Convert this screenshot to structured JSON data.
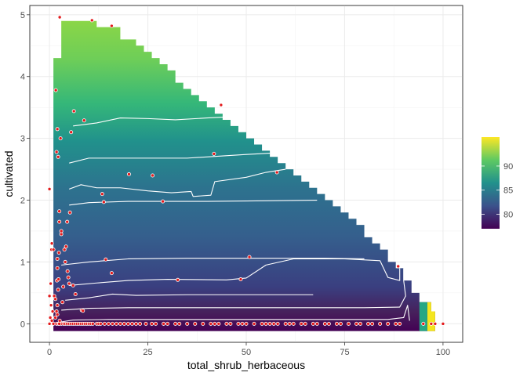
{
  "chart_data": {
    "type": "heatmap",
    "xlabel": "total_shrub_herbaceous",
    "ylabel": "cultivated",
    "xlim": [
      -5,
      105
    ],
    "ylim": [
      -0.3,
      5.15
    ],
    "x_ticks": [
      0,
      25,
      50,
      75,
      100
    ],
    "x_tick_labels": [
      "0",
      "25",
      "50",
      "75",
      "100"
    ],
    "y_ticks": [
      0,
      1,
      2,
      3,
      4,
      5
    ],
    "y_tick_labels": [
      "0",
      "1",
      "2",
      "3",
      "4",
      "5"
    ],
    "grid": true,
    "colorscale": "viridis",
    "fill_range": [
      77,
      96
    ],
    "legend": {
      "placement": "right",
      "ticks": [
        80,
        85,
        90
      ],
      "tick_labels": [
        "80",
        "85",
        "90"
      ]
    },
    "region_upper_boundary": [
      [
        1,
        4.3
      ],
      [
        3,
        4.3
      ],
      [
        3,
        4.9
      ],
      [
        12,
        4.9
      ],
      [
        12,
        4.8
      ],
      [
        18,
        4.8
      ],
      [
        18,
        4.6
      ],
      [
        22,
        4.6
      ],
      [
        22,
        4.5
      ],
      [
        24,
        4.5
      ],
      [
        24,
        4.4
      ],
      [
        26,
        4.4
      ],
      [
        26,
        4.3
      ],
      [
        28,
        4.3
      ],
      [
        28,
        4.2
      ],
      [
        30,
        4.2
      ],
      [
        30,
        4.1
      ],
      [
        32,
        4.1
      ],
      [
        32,
        3.9
      ],
      [
        34,
        3.9
      ],
      [
        34,
        3.8
      ],
      [
        36,
        3.8
      ],
      [
        36,
        3.7
      ],
      [
        38,
        3.7
      ],
      [
        38,
        3.6
      ],
      [
        40,
        3.6
      ],
      [
        40,
        3.5
      ],
      [
        42,
        3.5
      ],
      [
        42,
        3.4
      ],
      [
        44,
        3.4
      ],
      [
        44,
        3.3
      ],
      [
        46,
        3.3
      ],
      [
        46,
        3.2
      ],
      [
        48,
        3.2
      ],
      [
        48,
        3.1
      ],
      [
        50,
        3.1
      ],
      [
        50,
        3.0
      ],
      [
        52,
        3.0
      ],
      [
        52,
        2.9
      ],
      [
        54,
        2.9
      ],
      [
        54,
        2.8
      ],
      [
        56,
        2.8
      ],
      [
        56,
        2.7
      ],
      [
        58,
        2.7
      ],
      [
        58,
        2.6
      ],
      [
        60,
        2.6
      ],
      [
        60,
        2.5
      ],
      [
        62,
        2.5
      ],
      [
        62,
        2.4
      ],
      [
        64,
        2.4
      ],
      [
        64,
        2.3
      ],
      [
        66,
        2.3
      ],
      [
        66,
        2.2
      ],
      [
        68,
        2.2
      ],
      [
        68,
        2.1
      ],
      [
        70,
        2.1
      ],
      [
        70,
        2.0
      ],
      [
        72,
        2.0
      ],
      [
        72,
        1.9
      ],
      [
        74,
        1.9
      ],
      [
        74,
        1.8
      ],
      [
        76,
        1.8
      ],
      [
        76,
        1.7
      ],
      [
        78,
        1.7
      ],
      [
        78,
        1.6
      ],
      [
        80,
        1.6
      ],
      [
        80,
        1.4
      ],
      [
        82,
        1.4
      ],
      [
        82,
        1.3
      ],
      [
        84,
        1.3
      ],
      [
        84,
        1.2
      ],
      [
        86,
        1.2
      ],
      [
        86,
        1.0
      ],
      [
        88,
        1.0
      ],
      [
        88,
        0.9
      ],
      [
        90,
        0.9
      ],
      [
        90,
        0.7
      ],
      [
        92,
        0.7
      ],
      [
        92,
        0.5
      ],
      [
        94,
        0.5
      ],
      [
        94,
        0.35
      ],
      [
        97,
        0.35
      ],
      [
        97,
        0.2
      ],
      [
        98,
        0.2
      ],
      [
        98,
        0.0
      ]
    ],
    "contours": [
      [
        [
          2,
          0.02
        ],
        [
          6,
          0.06
        ],
        [
          15,
          0.07
        ],
        [
          30,
          0.07
        ],
        [
          45,
          0.07
        ],
        [
          60,
          0.07
        ],
        [
          75,
          0.07
        ],
        [
          86,
          0.07
        ],
        [
          90,
          0.1
        ],
        [
          91,
          0.3
        ],
        [
          91.5,
          0.05
        ]
      ],
      [
        [
          3,
          0.22
        ],
        [
          10,
          0.25
        ],
        [
          20,
          0.26
        ],
        [
          40,
          0.26
        ],
        [
          60,
          0.26
        ],
        [
          80,
          0.26
        ],
        [
          89,
          0.27
        ],
        [
          90.5,
          0.45
        ],
        [
          90,
          0.7
        ],
        [
          90,
          0.9
        ]
      ],
      [
        [
          4,
          0.38
        ],
        [
          10,
          0.42
        ],
        [
          16,
          0.48
        ],
        [
          22,
          0.46
        ],
        [
          35,
          0.47
        ],
        [
          50,
          0.47
        ],
        [
          67,
          0.47
        ]
      ],
      [
        [
          5,
          0.62
        ],
        [
          12,
          0.66
        ],
        [
          20,
          0.7
        ],
        [
          30,
          0.72
        ],
        [
          45,
          0.71
        ],
        [
          50,
          0.74
        ],
        [
          55,
          0.95
        ],
        [
          62,
          1.05
        ],
        [
          75,
          1.05
        ],
        [
          84,
          1.02
        ],
        [
          86,
          0.75
        ],
        [
          89,
          0.7
        ],
        [
          89,
          0.9
        ]
      ],
      [
        [
          3,
          0.95
        ],
        [
          10,
          1.0
        ],
        [
          20,
          1.05
        ],
        [
          35,
          1.06
        ],
        [
          55,
          1.06
        ],
        [
          70,
          1.06
        ],
        [
          80,
          1.05
        ]
      ],
      [
        [
          5,
          1.92
        ],
        [
          10,
          1.96
        ],
        [
          20,
          1.98
        ],
        [
          40,
          1.98
        ],
        [
          55,
          1.99
        ],
        [
          68,
          2.0
        ]
      ],
      [
        [
          5,
          2.18
        ],
        [
          8,
          2.25
        ],
        [
          12,
          2.2
        ],
        [
          18,
          2.2
        ],
        [
          25,
          2.15
        ],
        [
          31,
          2.12
        ],
        [
          36,
          2.14
        ],
        [
          36.5,
          2.06
        ],
        [
          41,
          2.08
        ],
        [
          42,
          2.3
        ],
        [
          50,
          2.37
        ],
        [
          55,
          2.45
        ],
        [
          60,
          2.5
        ]
      ],
      [
        [
          5,
          2.6
        ],
        [
          10,
          2.68
        ],
        [
          20,
          2.68
        ],
        [
          35,
          2.68
        ],
        [
          50,
          2.74
        ],
        [
          56,
          2.76
        ]
      ],
      [
        [
          6,
          3.2
        ],
        [
          12,
          3.25
        ],
        [
          18,
          3.33
        ],
        [
          25,
          3.32
        ],
        [
          32,
          3.3
        ],
        [
          40,
          3.33
        ],
        [
          46,
          3.35
        ],
        [
          47,
          3.3
        ]
      ]
    ],
    "points": [
      [
        0,
        0.0
      ],
      [
        0.2,
        0.1
      ],
      [
        0.4,
        0.3
      ],
      [
        0.6,
        0.05
      ],
      [
        0.8,
        0.2
      ],
      [
        1,
        0.0
      ],
      [
        1.2,
        0.45
      ],
      [
        1.5,
        0.1
      ],
      [
        1.8,
        0.0
      ],
      [
        2,
        0.15
      ],
      [
        2.3,
        0.0
      ],
      [
        2.6,
        0.05
      ],
      [
        3,
        0.0
      ],
      [
        3.3,
        0.35
      ],
      [
        3.6,
        0.0
      ],
      [
        4,
        0.0
      ],
      [
        4.5,
        0.0
      ],
      [
        5,
        0.0
      ],
      [
        5.5,
        0.0
      ],
      [
        6,
        0.0
      ],
      [
        6.5,
        0.0
      ],
      [
        7,
        0.0
      ],
      [
        7.5,
        0.0
      ],
      [
        8,
        0.0
      ],
      [
        8.5,
        0.0
      ],
      [
        9,
        0.0
      ],
      [
        9.5,
        0.0
      ],
      [
        10,
        0.0
      ],
      [
        10.5,
        0.0
      ],
      [
        11,
        0.0
      ],
      [
        12,
        0.0
      ],
      [
        12.5,
        0.0
      ],
      [
        13,
        0.0
      ],
      [
        14,
        0.0
      ],
      [
        15,
        0.0
      ],
      [
        16,
        0.0
      ],
      [
        17,
        0.0
      ],
      [
        18,
        0.0
      ],
      [
        19,
        0.0
      ],
      [
        20,
        0.0
      ],
      [
        21,
        0.0
      ],
      [
        22,
        0.0
      ],
      [
        23,
        0.0
      ],
      [
        24.5,
        0.0
      ],
      [
        26,
        0.0
      ],
      [
        27,
        0.0
      ],
      [
        29,
        0.0
      ],
      [
        30,
        0.0
      ],
      [
        32,
        0.0
      ],
      [
        33,
        0.0
      ],
      [
        35,
        0.0
      ],
      [
        37,
        0.0
      ],
      [
        39,
        0.0
      ],
      [
        41,
        0.0
      ],
      [
        42,
        0.0
      ],
      [
        43,
        0.0
      ],
      [
        45,
        0.0
      ],
      [
        46,
        0.0
      ],
      [
        48,
        0.0
      ],
      [
        49,
        0.0
      ],
      [
        50,
        0.0
      ],
      [
        52,
        0.0
      ],
      [
        54,
        0.0
      ],
      [
        55,
        0.0
      ],
      [
        56,
        0.0
      ],
      [
        57,
        0.0
      ],
      [
        58,
        0.0
      ],
      [
        60,
        0.0
      ],
      [
        61,
        0.0
      ],
      [
        62,
        0.0
      ],
      [
        64,
        0.0
      ],
      [
        65,
        0.0
      ],
      [
        67,
        0.0
      ],
      [
        68,
        0.0
      ],
      [
        70,
        0.0
      ],
      [
        71,
        0.0
      ],
      [
        73,
        0.0
      ],
      [
        74,
        0.0
      ],
      [
        76,
        0.0
      ],
      [
        78,
        0.0
      ],
      [
        79,
        0.0
      ],
      [
        81,
        0.0
      ],
      [
        82,
        0.0
      ],
      [
        84,
        0.0
      ],
      [
        86,
        0.0
      ],
      [
        88,
        0.0
      ],
      [
        89,
        0.0
      ],
      [
        95,
        0.0
      ],
      [
        97,
        0.0
      ],
      [
        98,
        0.0
      ],
      [
        100,
        0.0
      ],
      [
        0,
        0.45
      ],
      [
        0.3,
        0.65
      ],
      [
        0.5,
        1.2
      ],
      [
        0.6,
        1.3
      ],
      [
        1,
        1.2
      ],
      [
        0,
        2.18
      ],
      [
        1.5,
        0.4
      ],
      [
        1.8,
        0.2
      ],
      [
        2,
        0.3
      ],
      [
        2.5,
        0.0
      ],
      [
        1.9,
        0.7
      ],
      [
        2,
        1.05
      ],
      [
        2,
        0.9
      ],
      [
        2.2,
        0.55
      ],
      [
        2.3,
        0.72
      ],
      [
        2.4,
        1.15
      ],
      [
        2.5,
        1.65
      ],
      [
        2.5,
        1.82
      ],
      [
        3,
        1.45
      ],
      [
        3,
        1.5
      ],
      [
        3.5,
        0.6
      ],
      [
        3.8,
        1.2
      ],
      [
        4,
        1.0
      ],
      [
        4.2,
        1.25
      ],
      [
        4.5,
        1.65
      ],
      [
        4.6,
        0.85
      ],
      [
        4.8,
        0.75
      ],
      [
        5,
        0.65
      ],
      [
        5.2,
        1.8
      ],
      [
        6,
        0.62
      ],
      [
        6.6,
        0.48
      ],
      [
        8.2,
        0.22
      ],
      [
        8.5,
        0.21
      ],
      [
        14.3,
        1.04
      ],
      [
        15.8,
        0.82
      ],
      [
        13.4,
        2.1
      ],
      [
        13.8,
        1.97
      ],
      [
        20.2,
        2.42
      ],
      [
        26.2,
        2.4
      ],
      [
        28.8,
        1.98
      ],
      [
        32.6,
        0.71
      ],
      [
        50.8,
        1.08
      ],
      [
        48.6,
        0.72
      ],
      [
        41.8,
        2.75
      ],
      [
        57.8,
        2.45
      ],
      [
        88.6,
        0.93
      ],
      [
        1.6,
        3.78
      ],
      [
        1.8,
        2.78
      ],
      [
        2,
        3.15
      ],
      [
        2.2,
        2.7
      ],
      [
        2.8,
        3.0
      ],
      [
        5.5,
        3.1
      ],
      [
        6.2,
        3.44
      ],
      [
        8.8,
        3.29
      ],
      [
        10.8,
        4.91
      ],
      [
        15.8,
        4.82
      ],
      [
        2.6,
        4.96
      ],
      [
        43.6,
        3.54
      ]
    ]
  }
}
